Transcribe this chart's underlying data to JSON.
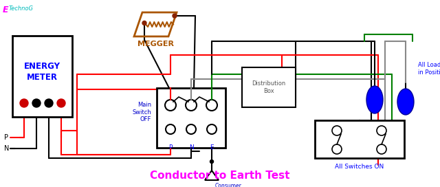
{
  "title": "Conductor to Earth Test",
  "title_color": "#FF00FF",
  "title_fontsize": 11,
  "logo_e": "E",
  "logo_t": "TechnoG",
  "logo_e_color": "#FF00FF",
  "logo_t_color": "#00BBBB",
  "bg_color": "#FFFFFF",
  "energy_meter_label": "ENERGY\nMETER",
  "energy_meter_color": "#0000FF",
  "megger_label": "MEGGER",
  "megger_color": "#AA5500",
  "main_switch_label": "Main\nSwitch\nOFF",
  "main_switch_color": "#0000CC",
  "dist_box_label": "Distribution\nBox",
  "dist_box_color": "#555555",
  "consumer_earth_label": "Consumer\nmain earth",
  "consumer_earth_color": "#0000CC",
  "all_switches_label": "All Switches ON",
  "all_switches_color": "#0000FF",
  "all_load_label": "All Load\nin Position",
  "all_load_color": "#0000FF",
  "p_label": "P",
  "n_label": "N",
  "e_label": "E",
  "RED": "#FF0000",
  "BLACK": "#000000",
  "GREEN": "#008000",
  "GRAY": "#888888",
  "BLUE": "#0000FF",
  "ORANGE": "#AA5500"
}
